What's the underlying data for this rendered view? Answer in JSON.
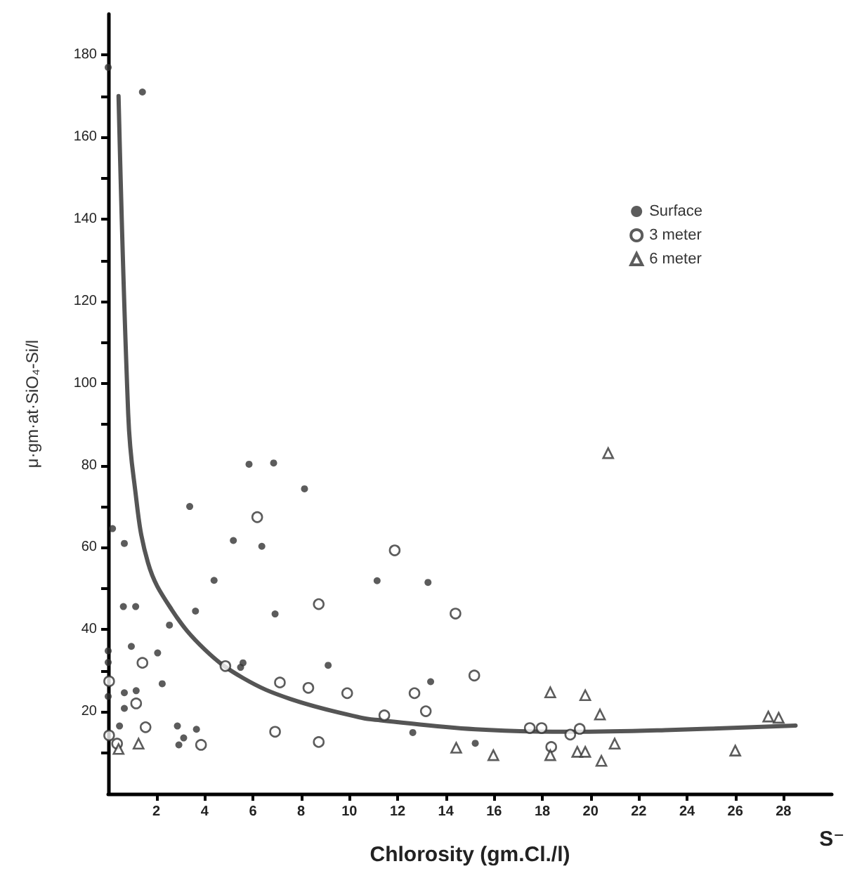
{
  "chart_data": {
    "type": "scatter",
    "xlabel": "Chlorosity (gm.Cl./l)",
    "ylabel": "μ·gm·at·SiO₄-Si/l",
    "annotations": [
      "S⁻"
    ],
    "xlim": [
      0,
      30
    ],
    "xticks": [
      2,
      4,
      6,
      8,
      10,
      12,
      14,
      16,
      18,
      20,
      22,
      24,
      26,
      28
    ],
    "ylim": [
      0,
      190
    ],
    "yticks": [
      {
        "value": 10,
        "label": null
      },
      20,
      {
        "value": 30,
        "label": null
      },
      40,
      {
        "value": 50,
        "label": null
      },
      60,
      {
        "value": 70,
        "label": null
      },
      80,
      {
        "value": 90,
        "label": null
      },
      100,
      {
        "value": 110,
        "label": null
      },
      120,
      {
        "value": 130,
        "label": null
      },
      140,
      {
        "value": 150,
        "label": null
      },
      160,
      {
        "value": 170,
        "label": null
      },
      180
    ],
    "grid": false,
    "legend": "top right",
    "series": [
      {
        "name": "Surface",
        "marker": "circle",
        "color": "#333333",
        "x": [
          0.18,
          0.67,
          0.63,
          1.14,
          3.38,
          5.84,
          6.86,
          8.14,
          5.19,
          6.37,
          4.39,
          3.62,
          6.92,
          2.05,
          0.96,
          9.12,
          5.59,
          5.49,
          2.24,
          0.47,
          2.87,
          3.66,
          3.13,
          2.93,
          0.67,
          1.16,
          0.67,
          0,
          0,
          0,
          2.54,
          0,
          1.42,
          11.15,
          13.26,
          13.37,
          12.63,
          15.22
        ],
        "values": [
          64.6,
          61,
          45.6,
          45.6,
          70,
          80.3,
          80.6,
          74.3,
          61.7,
          60.3,
          52,
          44.5,
          43.8,
          34.3,
          35.9,
          31.3,
          31.9,
          30.8,
          26.8,
          16.5,
          16.5,
          15.7,
          13.6,
          11.9,
          24.6,
          25.1,
          20.8,
          34.8,
          32,
          23.7,
          41.1,
          177,
          171,
          51.9,
          51.5,
          27.3,
          14.9,
          12.3
        ]
      },
      {
        "name": "3 meter",
        "marker": "circle",
        "color": "#333333",
        "x": [
          1.42,
          1.16,
          1.55,
          0.04,
          0.37,
          3.85,
          6.92,
          8.73,
          7.12,
          8.3,
          9.91,
          8.73,
          6.18,
          4.86,
          0.04,
          11.88,
          14.4,
          15.18,
          12.7,
          13.17,
          11.45,
          17.48,
          17.97,
          19.16,
          19.55,
          18.37
        ],
        "values": [
          31.9,
          22,
          16.2,
          14.2,
          12.2,
          11.9,
          15.1,
          12.6,
          27.1,
          25.8,
          24.5,
          46.2,
          67.4,
          31.1,
          27.4,
          59.3,
          43.9,
          28.8,
          24.5,
          20.1,
          19.1,
          16,
          16,
          14.4,
          15.8,
          11.4
        ]
      },
      {
        "name": "6 meter",
        "marker": "triangle",
        "color": "#333333",
        "x": [
          0.43,
          1.26,
          20.73,
          18.33,
          19.78,
          20.39,
          21,
          14.43,
          15.97,
          18.33,
          19.45,
          19.78,
          20.45,
          26,
          27.37,
          27.8
        ],
        "values": [
          10.9,
          12.2,
          83,
          24.7,
          24,
          19.3,
          12.2,
          11.2,
          9.4,
          9.4,
          10.2,
          10.2,
          8,
          10.5,
          18.8,
          18.5
        ]
      },
      {
        "type": "line",
        "marker": "none",
        "line_style": "solid",
        "color": "#555555",
        "x": [
          0.43,
          0.83,
          1.06,
          1.65,
          2.64,
          4.01,
          5.59,
          7.55,
          10.5,
          11.29,
          15.22,
          19.16,
          23.09,
          28.5
        ],
        "values": [
          170,
          92.6,
          76.8,
          56.3,
          44.8,
          35.1,
          28.2,
          23.1,
          18.5,
          17.9,
          15.7,
          15.1,
          15.5,
          16.6
        ]
      }
    ]
  }
}
